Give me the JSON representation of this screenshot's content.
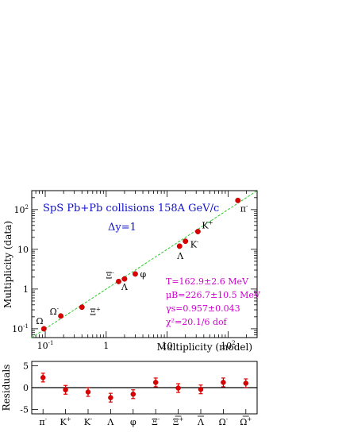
{
  "chart_data": [
    {
      "type": "scatter",
      "title": "SpS Pb+Pb collisions 158A GeV/c",
      "subtitle": "Δy=1",
      "xlabel": "Multiplicity (model)",
      "ylabel": "Multiplicity (data)",
      "xscale": "log",
      "yscale": "log",
      "xlim": [
        0.06,
        300
      ],
      "ylim": [
        0.06,
        300
      ],
      "x_ticks": [
        {
          "base": "10",
          "exp": "-1",
          "value": 0.1
        },
        {
          "base": "1",
          "exp": "",
          "value": 1
        },
        {
          "base": "10",
          "exp": "",
          "value": 10
        },
        {
          "base": "10",
          "exp": "2",
          "value": 100
        }
      ],
      "y_ticks": [
        {
          "base": "10",
          "exp": "-1",
          "value": 0.1
        },
        {
          "base": "1",
          "exp": "",
          "value": 1
        },
        {
          "base": "10",
          "exp": "",
          "value": 10
        },
        {
          "base": "10",
          "exp": "2",
          "value": 100
        }
      ],
      "fit_line": {
        "x": [
          0.06,
          300
        ],
        "y": [
          0.06,
          300
        ]
      },
      "points": [
        {
          "label": "π",
          "sup": "-",
          "x": 145,
          "y": 170
        },
        {
          "label": "K",
          "sup": "+",
          "x": 32,
          "y": 28
        },
        {
          "label": "K",
          "sup": "-",
          "x": 20,
          "y": 16
        },
        {
          "label": "Λ",
          "sup": "",
          "x": 16,
          "y": 12
        },
        {
          "label": "φ",
          "sup": "",
          "x": 3.0,
          "y": 2.4
        },
        {
          "label": "Λ",
          "sup": "",
          "x": 2.0,
          "y": 1.8
        },
        {
          "label": "Ξ",
          "sup": "-",
          "x": 1.6,
          "y": 1.55
        },
        {
          "label": "Ξ",
          "sup": "+",
          "x": 0.4,
          "y": 0.35
        },
        {
          "label": "Ω",
          "sup": "-",
          "x": 0.18,
          "y": 0.21
        },
        {
          "label": "Ω",
          "sup": "",
          "x": 0.095,
          "y": 0.1
        }
      ],
      "fit_params": [
        "T=162.9±2.6 MeV",
        "μB=226.7±10.5 MeV",
        "γs=0.957±0.043",
        "χ²=20.1/6 dof"
      ]
    },
    {
      "type": "scatter",
      "ylabel": "Residuals",
      "ylim": [
        -6,
        6
      ],
      "y_ticks": [
        5,
        0,
        -5
      ],
      "categories": [
        "π",
        "K",
        "K",
        "Λ",
        "φ",
        "Ξ",
        "Ξ",
        "Λ",
        "Ω",
        "Ω"
      ],
      "category_sups": [
        "-",
        "+",
        "-",
        "",
        "",
        "-",
        "+",
        "",
        "-",
        "+"
      ],
      "category_bars": [
        false,
        false,
        false,
        false,
        false,
        false,
        true,
        true,
        false,
        true
      ],
      "values": [
        2.3,
        -0.5,
        -1.0,
        -2.3,
        -1.5,
        1.2,
        -0.1,
        -0.4,
        1.2,
        1.0
      ],
      "errors": [
        1.0,
        1.0,
        1.0,
        1.0,
        1.0,
        1.0,
        1.0,
        1.0,
        1.0,
        1.0
      ]
    }
  ]
}
